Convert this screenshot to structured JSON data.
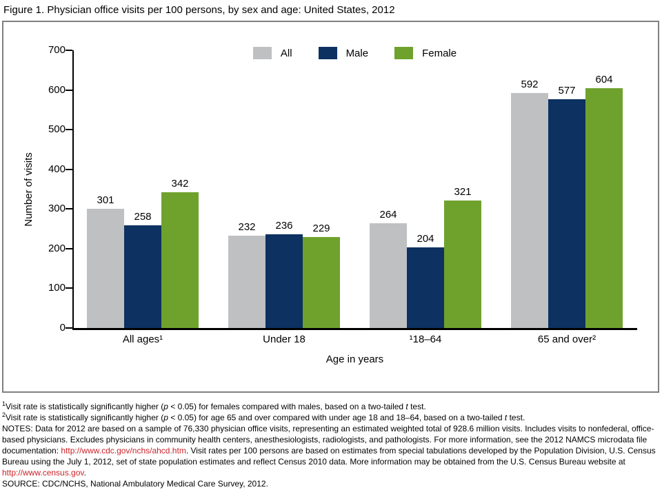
{
  "chart_data": {
    "type": "bar",
    "title": "Figure 1. Physician office visits per 100 persons, by sex and age: United States, 2012",
    "categories": [
      "All ages¹",
      "Under 18",
      "¹18–64",
      "65 and over²"
    ],
    "series": [
      {
        "name": "All",
        "color": "#bfc0c2",
        "values": [
          301,
          232,
          264,
          592
        ]
      },
      {
        "name": "Male",
        "color": "#0d3161",
        "values": [
          258,
          236,
          204,
          577
        ]
      },
      {
        "name": "Female",
        "color": "#6fa22d",
        "values": [
          342,
          229,
          321,
          604
        ]
      }
    ],
    "xlabel": "Age in years",
    "ylabel": "Number of visits",
    "ylim": [
      0,
      700
    ],
    "yticks": [
      0,
      100,
      200,
      300,
      400,
      500,
      600,
      700
    ],
    "legend_position": "top-center",
    "grid": false,
    "bar_value_labels": true
  },
  "colors": {
    "link_red": "#cc2229",
    "panel_border": "#7f7f7f",
    "axis_black": "#000000"
  },
  "footnotes": [
    {
      "name": "footnote-1",
      "segments": [
        {
          "t": "1",
          "sup": true
        },
        {
          "t": "Visit rate is statistically significantly higher ("
        },
        {
          "t": "p",
          "italic": true
        },
        {
          "t": " < 0.05) for females compared with males, based on a two-tailed "
        },
        {
          "t": "t",
          "italic": true
        },
        {
          "t": " test."
        }
      ]
    },
    {
      "name": "footnote-2",
      "segments": [
        {
          "t": "2",
          "sup": true
        },
        {
          "t": "Visit rate is statistically significantly higher ("
        },
        {
          "t": "p",
          "italic": true
        },
        {
          "t": " < 0.05) for age 65 and over compared with under age 18 and 18–64, based on a two-tailed "
        },
        {
          "t": "t",
          "italic": true
        },
        {
          "t": " test."
        }
      ]
    },
    {
      "name": "notes",
      "segments": [
        {
          "t": "NOTES: Data for 2012 are based on a sample of 76,330 physician office visits, representing an estimated weighted total of 928.6 million visits. Includes visits to nonfederal, office-based physicians. Excludes physicians in community health centers, anesthesiologists, radiologists, and pathologists. For more information, see the 2012 NAMCS microdata file documentation: "
        },
        {
          "t": "http://www.cdc.gov/nchs/ahcd.htm",
          "link": true,
          "name": "cdc-nchs-link"
        },
        {
          "t": ". Visit rates per 100 persons are based on estimates from special tabulations developed by the Population Division, U.S. Census Bureau using the July 1, 2012, set of state population estimates and reflect Census 2010 data. More information may be obtained from the U.S. Census Bureau website at "
        },
        {
          "t": "http://www.census.gov",
          "link": true,
          "name": "census-link"
        },
        {
          "t": "."
        }
      ]
    },
    {
      "name": "source-line",
      "segments": [
        {
          "t": "SOURCE: CDC/NCHS, National Ambulatory Medical Care Survey, 2012."
        }
      ]
    }
  ]
}
